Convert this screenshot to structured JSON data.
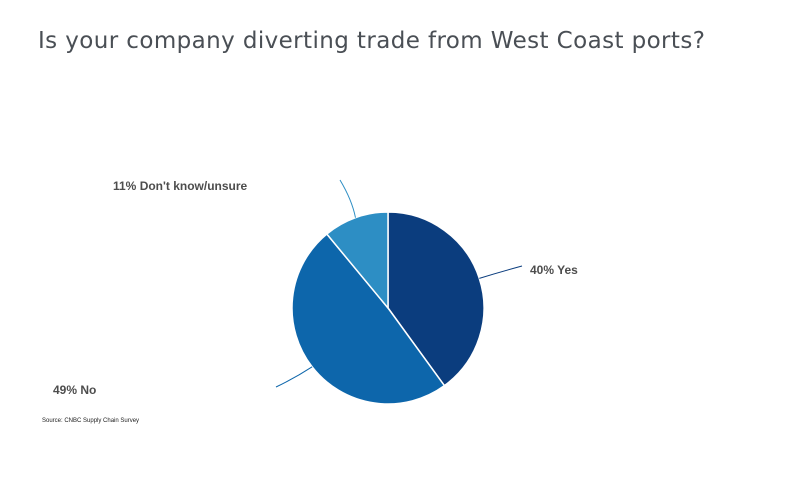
{
  "title": "Is your company diverting trade from West Coast ports?",
  "source": "Source: CNBC Supply Chain Survey",
  "chart_data": {
    "type": "pie",
    "title": "Is your company diverting trade from West Coast ports?",
    "slices": [
      {
        "label": "40% Yes",
        "name": "Yes",
        "value": 40,
        "color": "#0b3d7e"
      },
      {
        "label": "49% No",
        "name": "No",
        "value": 49,
        "color": "#0d66ab"
      },
      {
        "label": "11% Don't know/unsure",
        "name": "Don't know/unsure",
        "value": 11,
        "color": "#2d8ec4"
      }
    ],
    "start": "12 o'clock",
    "direction": "clockwise",
    "label_lines": true,
    "legend": "none"
  }
}
